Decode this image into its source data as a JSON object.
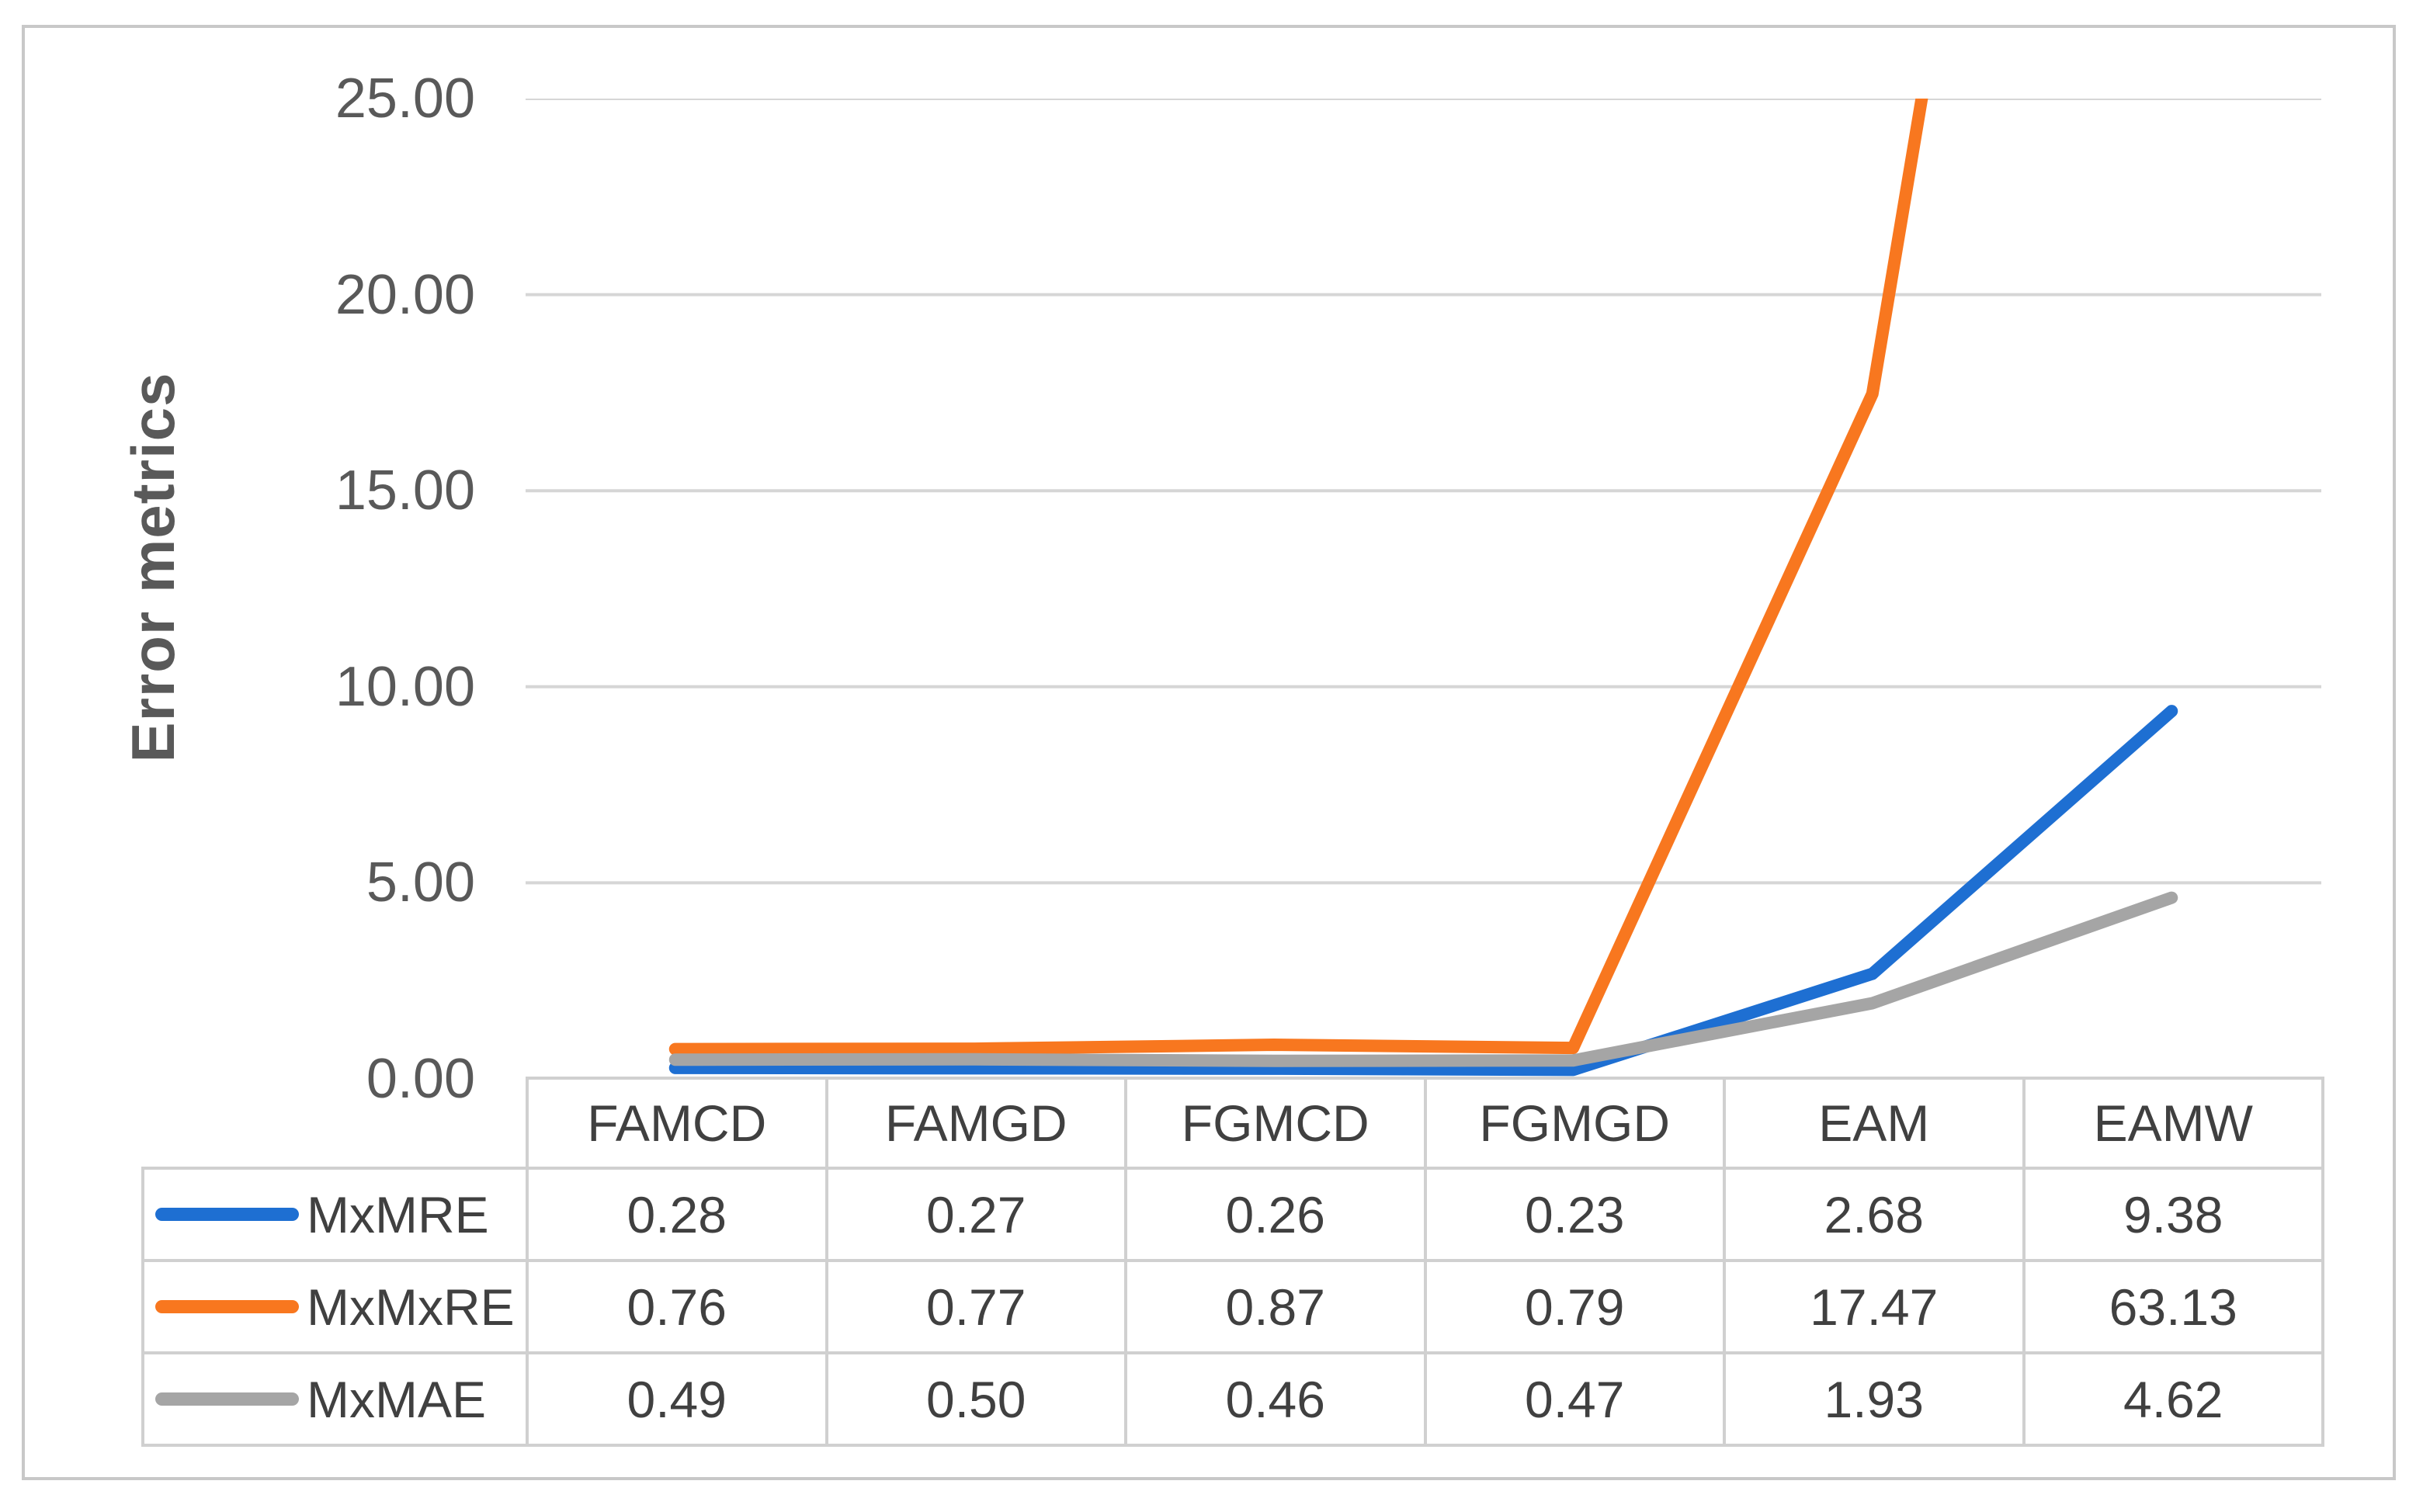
{
  "figure": {
    "background": "#FFFFFF",
    "border_color": "#C8C8C8"
  },
  "chart_data": {
    "type": "line",
    "ylabel": "Error metrics",
    "xlabel": "",
    "ylim": [
      0,
      25
    ],
    "ytick_labels": [
      "0.00",
      "5.00",
      "10.00",
      "15.00",
      "20.00",
      "25.00"
    ],
    "grid": true,
    "gridline_color": "#D6D6D6",
    "axis_text_color": "#595959",
    "legend_position": "table-left-column",
    "categories": [
      "FAMCD",
      "FAMGD",
      "FGMCD",
      "FGMGD",
      "EAM",
      "EAMW"
    ],
    "series": [
      {
        "name": "MxMRE",
        "color": "#1E6FD2",
        "values": [
          0.28,
          0.27,
          0.26,
          0.23,
          2.68,
          9.38
        ]
      },
      {
        "name": "MxMxRE",
        "color": "#F8771F",
        "values": [
          0.76,
          0.77,
          0.87,
          0.79,
          17.47,
          63.13
        ]
      },
      {
        "name": "MxMAE",
        "color": "#A5A5A5",
        "values": [
          0.49,
          0.5,
          0.46,
          0.47,
          1.93,
          4.62
        ]
      }
    ],
    "value_format_decimals": 2,
    "note": "MxMxRE line is clipped at top of plot (exceeds y-axis max 25 toward 63.13)"
  },
  "table": {
    "border_color": "#D0D0D0",
    "text_color": "#404040"
  }
}
